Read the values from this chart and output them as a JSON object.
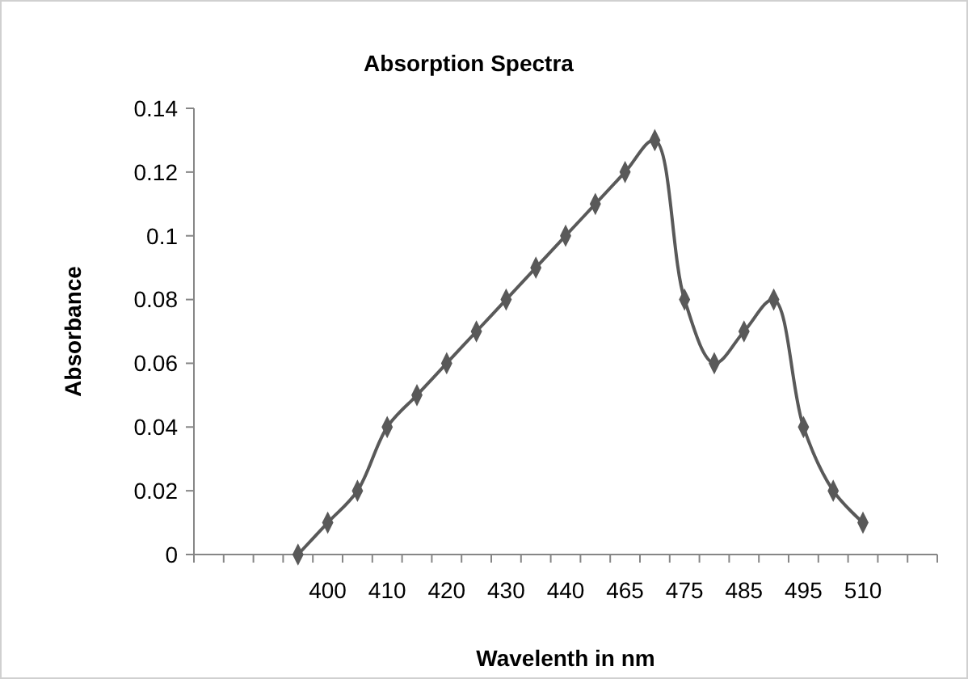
{
  "chart_data": {
    "type": "line",
    "title": "Absorption Spectra",
    "xlabel": "Wavelenth in nm",
    "ylabel": "Absorbance",
    "categories": [
      null,
      null,
      null,
      null,
      "400",
      null,
      "410",
      null,
      "420",
      null,
      "430",
      null,
      "440",
      null,
      "465",
      null,
      "475",
      null,
      "485",
      null,
      "495",
      null,
      "510",
      null,
      null
    ],
    "series": [
      {
        "color": "#595959",
        "values": [
          null,
          null,
          null,
          0,
          0.01,
          0.02,
          0.04,
          0.05,
          0.06,
          0.07,
          0.08,
          0.09,
          0.1,
          0.11,
          0.12,
          0.13,
          0.08,
          0.06,
          0.07,
          0.08,
          0.04,
          0.02,
          0.01,
          null,
          null
        ]
      }
    ],
    "ylim": [
      0,
      0.14
    ],
    "yticks": [
      0,
      0.02,
      0.04,
      0.06,
      0.08,
      0.1,
      0.12,
      0.14
    ],
    "grid": false,
    "marker": "diamond",
    "line_style": "solid"
  }
}
